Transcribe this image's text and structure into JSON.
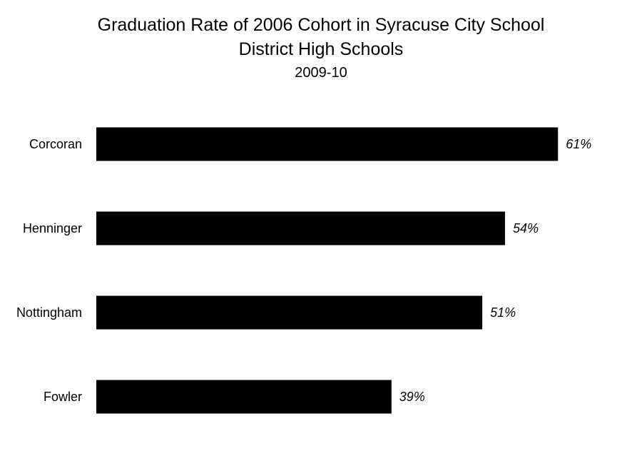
{
  "chart_data": {
    "type": "bar",
    "orientation": "horizontal",
    "title_lines": [
      "Graduation Rate of 2006 Cohort in Syracuse City School",
      "District High Schools"
    ],
    "subtitle": "2009-10",
    "categories": [
      "Corcoran",
      "Henninger",
      "Nottingham",
      "Fowler"
    ],
    "values": [
      61,
      54,
      51,
      39
    ],
    "value_labels": [
      "61%",
      "54%",
      "51%",
      "39%"
    ],
    "xlim": [
      0,
      100
    ],
    "bar_color": "#000000",
    "grid": false,
    "legend": "none"
  }
}
